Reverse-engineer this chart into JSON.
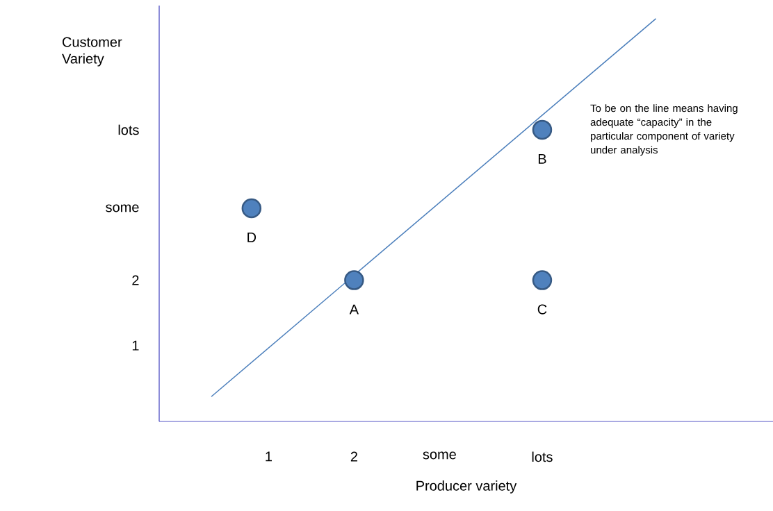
{
  "chart_data": {
    "type": "scatter",
    "xlabel": "Producer variety",
    "ylabel": "Customer Variety",
    "xlim": [
      -0.28,
      6.9
    ],
    "ylim": [
      -0.16,
      6.2
    ],
    "xticks": [
      1,
      2,
      {
        "value": 3,
        "label": "some"
      },
      {
        "value": 4.2,
        "label": "lots"
      }
    ],
    "yticks": [
      1,
      2,
      {
        "value": 3.1,
        "label": "some"
      },
      {
        "value": 4.3,
        "label": "lots"
      }
    ],
    "series": [
      {
        "color": "#4f81bd",
        "marker": "circle",
        "x": [
          2,
          4.2,
          4.2,
          0.8
        ],
        "values": [
          2,
          4.3,
          2,
          3.1
        ]
      },
      {
        "type": "line",
        "marker": "none",
        "color": "#4a7ebb",
        "x": [
          0.33,
          5.53
        ],
        "values": [
          0.22,
          6.0
        ]
      }
    ],
    "annotations": [
      {
        "text": "A",
        "x": 2,
        "y": 2
      },
      {
        "text": "B",
        "x": 4.2,
        "y": 4.3
      },
      {
        "text": "C",
        "x": 4.2,
        "y": 2
      },
      {
        "text": "D",
        "x": 0.8,
        "y": 3.1
      },
      "To be on the line means having adequate “capacity” in the particular component of variety under analysis"
    ]
  }
}
